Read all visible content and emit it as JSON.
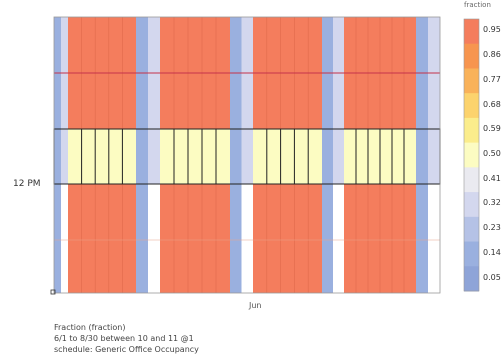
{
  "chart_data": {
    "type": "heatmap",
    "ylabel_tick": "12 PM",
    "xlabel_tick": "Jun",
    "legend_title": "fraction",
    "colorbar_ticks": [
      "0.95",
      "0.86",
      "0.77",
      "0.68",
      "0.59",
      "0.50",
      "0.41",
      "0.32",
      "0.23",
      "0.14",
      "0.05"
    ],
    "colorbar_colors": [
      "#f47d5d",
      "#f7954f",
      "#f9b25a",
      "#fcd36d",
      "#fbed8c",
      "#fcfcc2",
      "#eaeaf0",
      "#d3d7ee",
      "#b5c2e6",
      "#9ab0df",
      "#8ea4d8"
    ],
    "day_groups": [
      {
        "day_type": "weekend",
        "hours_0_2": 0.05,
        "hours_2_4": 0.05,
        "hours_4_6": 0.05,
        "hours_6_8": 0.05
      },
      {
        "day_type": "weekday",
        "hours_0_2": 0.95,
        "hours_2_4": 0.95,
        "hours_4_6": 0.5,
        "hours_6_8": 0.95
      },
      {
        "day_type": "weekend",
        "hours_0_2": 0.05,
        "hours_2_4": 0.05,
        "hours_4_6": 0.05,
        "hours_6_8": 0.05
      },
      {
        "day_type": "weekday",
        "hours_0_2": 0.95,
        "hours_2_4": 0.95,
        "hours_4_6": 0.5,
        "hours_6_8": 0.95
      },
      {
        "day_type": "weekend",
        "hours_0_2": 0.05,
        "hours_2_4": 0.05,
        "hours_4_6": 0.05,
        "hours_6_8": 0.05
      },
      {
        "day_type": "weekday",
        "hours_0_2": 0.95,
        "hours_2_4": 0.95,
        "hours_4_6": 0.5,
        "hours_6_8": 0.95
      },
      {
        "day_type": "weekend",
        "hours_0_2": 0.05,
        "hours_2_4": 0.05,
        "hours_4_6": 0.05,
        "hours_6_8": 0.05
      },
      {
        "day_type": "weekday",
        "hours_0_2": 0.95,
        "hours_2_4": 0.95,
        "hours_4_6": 0.5,
        "hours_6_8": 0.95
      },
      {
        "day_type": "weekend",
        "hours_0_2": 0.05,
        "hours_2_4": 0.05,
        "hours_4_6": 0.05,
        "hours_6_8": 0.05
      }
    ],
    "grid": true
  },
  "info": {
    "line1": "Fraction (fraction)",
    "line2": "6/1 to 8/30 between 10 and 11 @1",
    "line3": "schedule: Generic Office Occupancy"
  }
}
